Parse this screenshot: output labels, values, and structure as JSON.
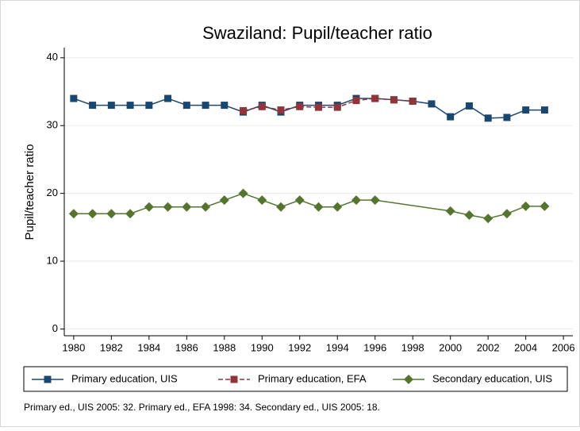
{
  "chart_data": {
    "type": "line",
    "title": "Swaziland: Pupil/teacher ratio",
    "y_label": "Pupil/teacher ratio",
    "note": "Primary ed., UIS 2005: 32. Primary ed., EFA 1998: 34. Secondary ed., UIS 2005: 18.",
    "xlim": [
      1979.5,
      2006.5
    ],
    "xticks": [
      1980,
      1982,
      1984,
      1986,
      1988,
      1990,
      1992,
      1994,
      1996,
      1998,
      2000,
      2002,
      2004,
      2006
    ],
    "ylim": [
      -1,
      41.5
    ],
    "yticks": [
      0,
      10,
      20,
      30,
      40
    ],
    "grid": true,
    "series": [
      {
        "name": "Primary education, UIS",
        "color": "#1a476f",
        "marker": "square",
        "dash": false,
        "x": [
          1980,
          1981,
          1982,
          1983,
          1984,
          1985,
          1986,
          1987,
          1988,
          1989,
          1990,
          1991,
          1992,
          1993,
          1994,
          1995,
          1996,
          1997,
          1998,
          1999,
          2000,
          2001,
          2002,
          2003,
          2004,
          2005
        ],
        "values": [
          34,
          33,
          33,
          33,
          33,
          34,
          33,
          33,
          33,
          32,
          33,
          32,
          33,
          33,
          33,
          34,
          34,
          33.8,
          33.6,
          33.2,
          31.3,
          32.9,
          31.1,
          31.2,
          32.3,
          32.3
        ]
      },
      {
        "name": "Primary education, EFA",
        "color": "#90353b",
        "marker": "square",
        "dash": true,
        "x": [
          1989,
          1990,
          1991,
          1992,
          1993,
          1994,
          1995,
          1996,
          1997,
          1998
        ],
        "values": [
          32.2,
          32.8,
          32.3,
          32.8,
          32.7,
          32.7,
          33.7,
          34,
          33.8,
          33.6
        ]
      },
      {
        "name": "Secondary education, UIS",
        "color": "#55752f",
        "marker": "diamond",
        "dash": false,
        "x": [
          1980,
          1981,
          1982,
          1983,
          1984,
          1985,
          1986,
          1987,
          1988,
          1989,
          1990,
          1991,
          1992,
          1993,
          1994,
          1995,
          1996,
          2000,
          2001,
          2002,
          2003,
          2004,
          2005
        ],
        "values": [
          17,
          17,
          17,
          17,
          18,
          18,
          18,
          18,
          19,
          20,
          19,
          18,
          19,
          18,
          18,
          19,
          19,
          17.4,
          16.8,
          16.3,
          17,
          18.1,
          18.1
        ]
      }
    ]
  }
}
